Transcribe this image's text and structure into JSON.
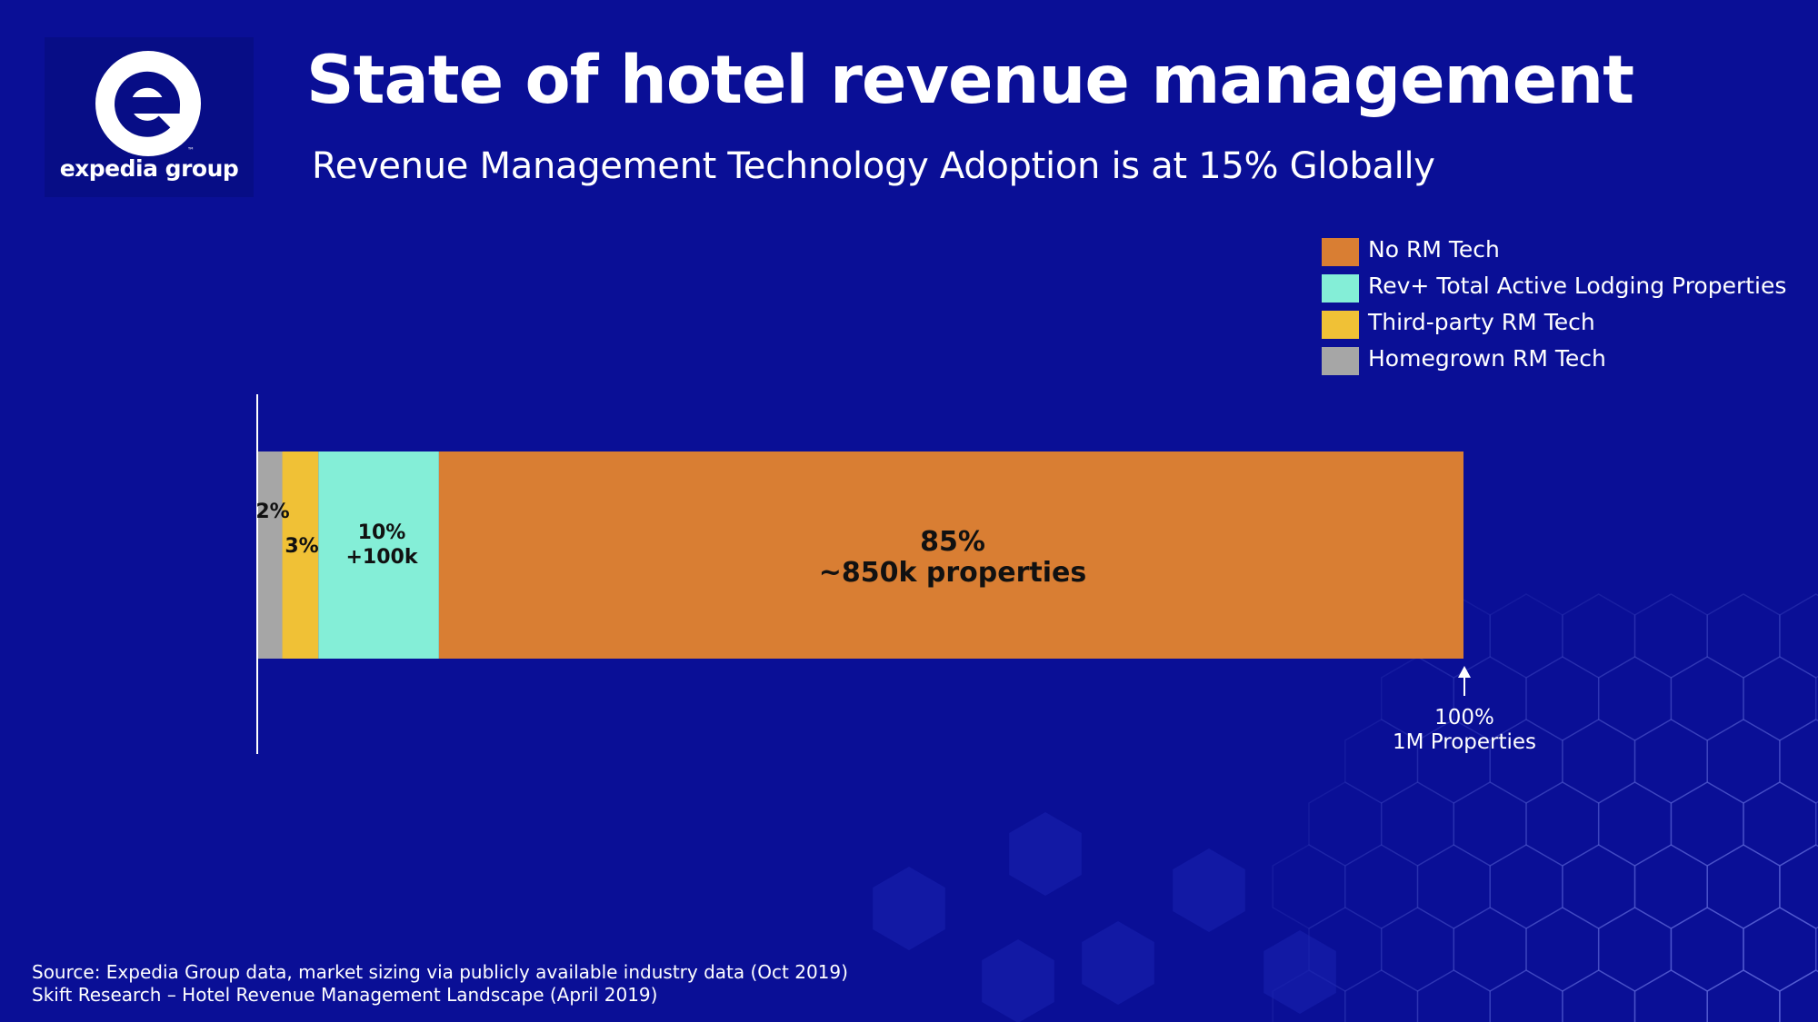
{
  "logo": {
    "brand_name": "expedia group",
    "tm": "™"
  },
  "header": {
    "title": "State of hotel revenue management",
    "subtitle": "Revenue Management Technology Adoption is at 15% Globally"
  },
  "colors": {
    "background": "#0a0f96",
    "no_rm_tech": "#d97e33",
    "rev_plus": "#84eed7",
    "third_party": "#f0c136",
    "homegrown": "#a6a6a6"
  },
  "chart_data": {
    "type": "bar",
    "orientation": "horizontal",
    "stacked": true,
    "legend_position": "top-right",
    "xlim": [
      0,
      100
    ],
    "series": [
      {
        "name": "Homegrown RM Tech",
        "value": 2,
        "label": [
          "2%"
        ],
        "color": "#a6a6a6"
      },
      {
        "name": "Third-party RM Tech",
        "value": 3,
        "label": [
          "3%"
        ],
        "color": "#f0c136"
      },
      {
        "name": "Rev+ Total Active Lodging Properties",
        "value": 10,
        "label": [
          "10%",
          "+100k"
        ],
        "color": "#84eed7"
      },
      {
        "name": "No RM Tech",
        "value": 85,
        "label": [
          "85%",
          "~850k properties"
        ],
        "color": "#d97e33"
      }
    ],
    "legend": [
      {
        "name": "No RM Tech",
        "color": "#d97e33"
      },
      {
        "name": "Rev+ Total Active Lodging Properties",
        "color": "#84eed7"
      },
      {
        "name": "Third-party RM Tech",
        "color": "#f0c136"
      },
      {
        "name": "Homegrown RM Tech",
        "color": "#a6a6a6"
      }
    ],
    "annotation": [
      "100%",
      "1M Properties"
    ]
  },
  "source": {
    "line1": "Source: Expedia Group data, market sizing via publicly available industry data (Oct 2019)",
    "line2": "Skift Research – Hotel Revenue Management Landscape (April 2019)"
  }
}
